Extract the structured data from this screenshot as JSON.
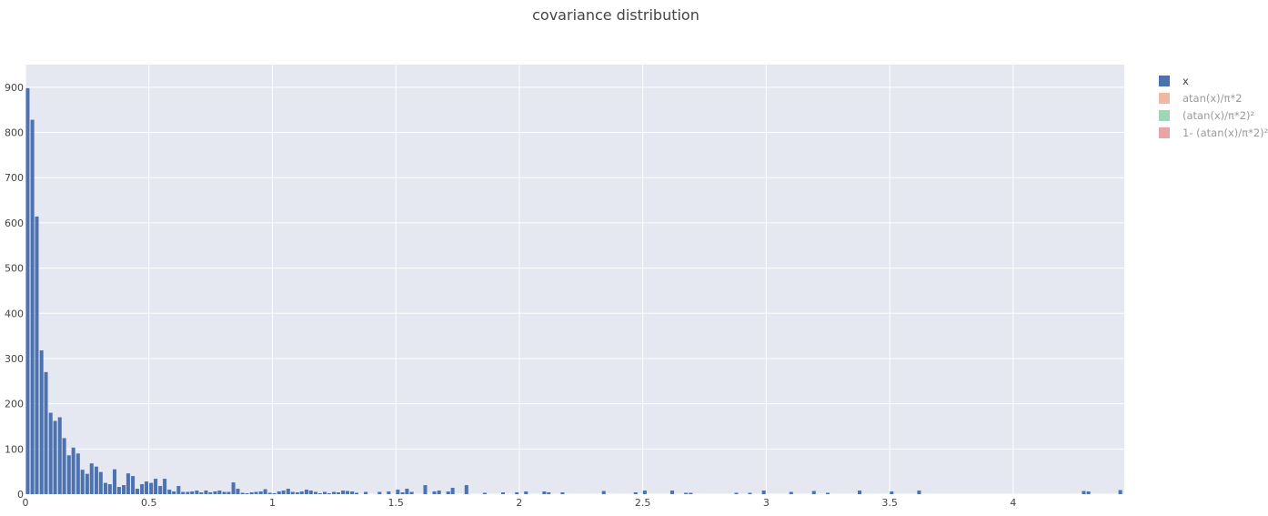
{
  "chart_data": {
    "type": "bar",
    "title": "covariance distribution",
    "xlabel": "",
    "ylabel": "",
    "xlim": [
      0,
      4.45
    ],
    "ylim": [
      0,
      950
    ],
    "grid": true,
    "legend_position": "right",
    "x_ticks": [
      {
        "value": 0,
        "label": "0"
      },
      {
        "value": 0.5,
        "label": "0.5"
      },
      {
        "value": 1,
        "label": "1"
      },
      {
        "value": 1.5,
        "label": "1.5"
      },
      {
        "value": 2,
        "label": "2"
      },
      {
        "value": 2.5,
        "label": "2.5"
      },
      {
        "value": 3,
        "label": "3"
      },
      {
        "value": 3.5,
        "label": "3.5"
      },
      {
        "value": 4,
        "label": "4"
      }
    ],
    "y_ticks": [
      {
        "value": 0,
        "label": "0"
      },
      {
        "value": 100,
        "label": "100"
      },
      {
        "value": 200,
        "label": "200"
      },
      {
        "value": 300,
        "label": "300"
      },
      {
        "value": 400,
        "label": "400"
      },
      {
        "value": 500,
        "label": "500"
      },
      {
        "value": 600,
        "label": "600"
      },
      {
        "value": 700,
        "label": "700"
      },
      {
        "value": 800,
        "label": "800"
      },
      {
        "value": 900,
        "label": "900"
      }
    ],
    "bin_width": 0.0185,
    "series": [
      {
        "name": "x",
        "color": "#4c72b0",
        "visible": true,
        "bins": [
          {
            "x": 0.009,
            "y": 898
          },
          {
            "x": 0.028,
            "y": 828
          },
          {
            "x": 0.046,
            "y": 614
          },
          {
            "x": 0.065,
            "y": 318
          },
          {
            "x": 0.083,
            "y": 270
          },
          {
            "x": 0.102,
            "y": 180
          },
          {
            "x": 0.12,
            "y": 162
          },
          {
            "x": 0.139,
            "y": 170
          },
          {
            "x": 0.157,
            "y": 124
          },
          {
            "x": 0.176,
            "y": 86
          },
          {
            "x": 0.194,
            "y": 103
          },
          {
            "x": 0.213,
            "y": 90
          },
          {
            "x": 0.231,
            "y": 54
          },
          {
            "x": 0.25,
            "y": 45
          },
          {
            "x": 0.268,
            "y": 68
          },
          {
            "x": 0.287,
            "y": 61
          },
          {
            "x": 0.305,
            "y": 49
          },
          {
            "x": 0.324,
            "y": 25
          },
          {
            "x": 0.342,
            "y": 22
          },
          {
            "x": 0.361,
            "y": 55
          },
          {
            "x": 0.379,
            "y": 16
          },
          {
            "x": 0.398,
            "y": 20
          },
          {
            "x": 0.416,
            "y": 46
          },
          {
            "x": 0.435,
            "y": 40
          },
          {
            "x": 0.453,
            "y": 12
          },
          {
            "x": 0.472,
            "y": 22
          },
          {
            "x": 0.49,
            "y": 28
          },
          {
            "x": 0.509,
            "y": 25
          },
          {
            "x": 0.527,
            "y": 34
          },
          {
            "x": 0.546,
            "y": 18
          },
          {
            "x": 0.564,
            "y": 34
          },
          {
            "x": 0.583,
            "y": 10
          },
          {
            "x": 0.601,
            "y": 6
          },
          {
            "x": 0.62,
            "y": 18
          },
          {
            "x": 0.638,
            "y": 5
          },
          {
            "x": 0.657,
            "y": 5
          },
          {
            "x": 0.675,
            "y": 6
          },
          {
            "x": 0.694,
            "y": 8
          },
          {
            "x": 0.712,
            "y": 4
          },
          {
            "x": 0.731,
            "y": 8
          },
          {
            "x": 0.749,
            "y": 4
          },
          {
            "x": 0.768,
            "y": 6
          },
          {
            "x": 0.786,
            "y": 8
          },
          {
            "x": 0.805,
            "y": 5
          },
          {
            "x": 0.823,
            "y": 5
          },
          {
            "x": 0.842,
            "y": 26
          },
          {
            "x": 0.86,
            "y": 12
          },
          {
            "x": 0.879,
            "y": 3
          },
          {
            "x": 0.897,
            "y": 2
          },
          {
            "x": 0.916,
            "y": 4
          },
          {
            "x": 0.934,
            "y": 5
          },
          {
            "x": 0.953,
            "y": 6
          },
          {
            "x": 0.971,
            "y": 11
          },
          {
            "x": 0.99,
            "y": 3
          },
          {
            "x": 1.008,
            "y": 2
          },
          {
            "x": 1.027,
            "y": 6
          },
          {
            "x": 1.045,
            "y": 8
          },
          {
            "x": 1.064,
            "y": 12
          },
          {
            "x": 1.082,
            "y": 5
          },
          {
            "x": 1.101,
            "y": 4
          },
          {
            "x": 1.119,
            "y": 6
          },
          {
            "x": 1.138,
            "y": 10
          },
          {
            "x": 1.156,
            "y": 8
          },
          {
            "x": 1.175,
            "y": 5
          },
          {
            "x": 1.193,
            "y": 2
          },
          {
            "x": 1.212,
            "y": 5
          },
          {
            "x": 1.23,
            "y": 2
          },
          {
            "x": 1.249,
            "y": 5
          },
          {
            "x": 1.267,
            "y": 4
          },
          {
            "x": 1.286,
            "y": 8
          },
          {
            "x": 1.304,
            "y": 7
          },
          {
            "x": 1.323,
            "y": 6
          },
          {
            "x": 1.341,
            "y": 3
          },
          {
            "x": 1.378,
            "y": 5
          },
          {
            "x": 1.434,
            "y": 5
          },
          {
            "x": 1.471,
            "y": 6
          },
          {
            "x": 1.508,
            "y": 10
          },
          {
            "x": 1.527,
            "y": 4
          },
          {
            "x": 1.545,
            "y": 12
          },
          {
            "x": 1.564,
            "y": 5
          },
          {
            "x": 1.619,
            "y": 20
          },
          {
            "x": 1.656,
            "y": 6
          },
          {
            "x": 1.675,
            "y": 8
          },
          {
            "x": 1.712,
            "y": 6
          },
          {
            "x": 1.73,
            "y": 14
          },
          {
            "x": 1.786,
            "y": 20
          },
          {
            "x": 1.86,
            "y": 3
          },
          {
            "x": 1.934,
            "y": 4
          },
          {
            "x": 1.99,
            "y": 4
          },
          {
            "x": 2.027,
            "y": 6
          },
          {
            "x": 2.101,
            "y": 6
          },
          {
            "x": 2.119,
            "y": 4
          },
          {
            "x": 2.175,
            "y": 4
          },
          {
            "x": 2.342,
            "y": 7
          },
          {
            "x": 2.471,
            "y": 4
          },
          {
            "x": 2.508,
            "y": 8
          },
          {
            "x": 2.619,
            "y": 8
          },
          {
            "x": 2.675,
            "y": 3
          },
          {
            "x": 2.694,
            "y": 3
          },
          {
            "x": 2.879,
            "y": 3
          },
          {
            "x": 2.934,
            "y": 3
          },
          {
            "x": 2.99,
            "y": 8
          },
          {
            "x": 3.101,
            "y": 5
          },
          {
            "x": 3.193,
            "y": 7
          },
          {
            "x": 3.249,
            "y": 3
          },
          {
            "x": 3.378,
            "y": 8
          },
          {
            "x": 3.508,
            "y": 6
          },
          {
            "x": 3.619,
            "y": 8
          },
          {
            "x": 4.286,
            "y": 7
          },
          {
            "x": 4.305,
            "y": 6
          },
          {
            "x": 4.434,
            "y": 9
          }
        ]
      },
      {
        "name": "atan(x)/π*2",
        "color": "#f0b8a0",
        "visible": false,
        "bins": []
      },
      {
        "name": "(atan(x)/π*2)²",
        "color": "#9fd6b4",
        "visible": false,
        "bins": []
      },
      {
        "name": "1- (atan(x)/π*2)²",
        "color": "#e8a5a5",
        "visible": false,
        "bins": []
      }
    ]
  }
}
